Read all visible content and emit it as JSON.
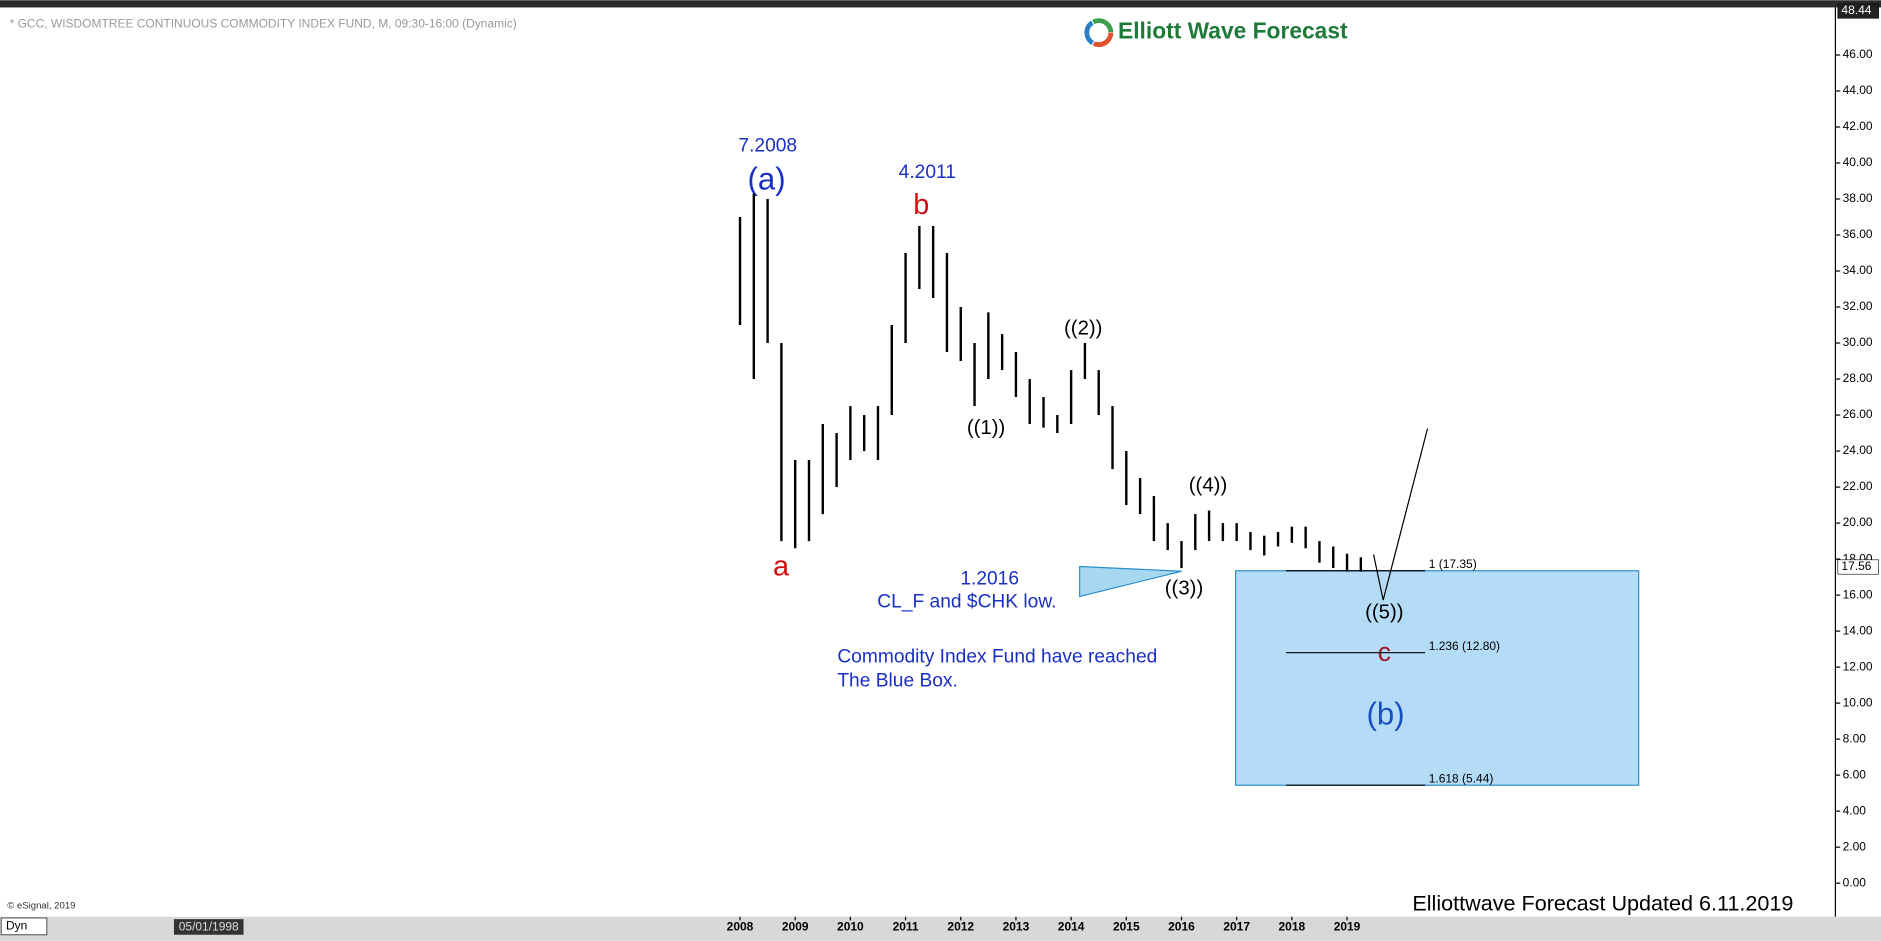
{
  "chart_data": {
    "type": "ohlc",
    "title": "* GCC, WISDOMTREE CONTINUOUS COMMODITY INDEX FUND, M, 09:30-16:00 (Dynamic)",
    "brand": "Elliott Wave Forecast",
    "copyright": "© eSignal, 2019",
    "mode": "Dyn",
    "start_date": "05/01/1998",
    "footer": "Elliottwave Forecast  Updated 6.11.2019",
    "color": "#000000",
    "x": [
      2008.0,
      2008.25,
      2008.5,
      2008.75,
      2009.0,
      2009.25,
      2009.5,
      2009.75,
      2010.0,
      2010.25,
      2010.5,
      2010.75,
      2011.0,
      2011.25,
      2011.5,
      2011.75,
      2012.0,
      2012.25,
      2012.5,
      2012.75,
      2013.0,
      2013.25,
      2013.5,
      2013.75,
      2014.0,
      2014.25,
      2014.5,
      2014.75,
      2015.0,
      2015.25,
      2015.5,
      2015.75,
      2016.0,
      2016.25,
      2016.5,
      2016.75,
      2017.0,
      2017.25,
      2017.5,
      2017.75,
      2018.0,
      2018.25,
      2018.5,
      2018.75,
      2019.0,
      2019.25
    ],
    "high": [
      37,
      38.3,
      38,
      30,
      23.5,
      23.5,
      25.5,
      25,
      26.5,
      26,
      26.5,
      31,
      35,
      36.5,
      36.5,
      35,
      32,
      30,
      31.7,
      30.5,
      29.5,
      28,
      27,
      26,
      28.5,
      30,
      28.5,
      26.5,
      24,
      22.5,
      21.5,
      20,
      19,
      20.5,
      20.7,
      20,
      20,
      19.5,
      19.3,
      19.5,
      19.8,
      19.8,
      19,
      18.7,
      18.3,
      18.1
    ],
    "low": [
      31,
      28,
      30,
      19,
      18.6,
      19,
      20.5,
      22,
      23.5,
      24,
      23.5,
      26,
      30,
      33,
      32.5,
      29.5,
      29,
      26.5,
      28,
      28.5,
      27,
      25.5,
      25.3,
      25,
      25.5,
      28,
      26,
      23,
      21,
      20.5,
      19,
      18.5,
      17.5,
      18.5,
      19,
      19,
      19,
      18.5,
      18.2,
      18.7,
      18.9,
      18.6,
      17.8,
      17.5,
      17.3,
      17.3
    ],
    "xlim": [
      1994.59,
      2027.85
    ],
    "xticks": [
      2008,
      2009,
      2010,
      2011,
      2012,
      2013,
      2014,
      2015,
      2016,
      2017,
      2018,
      2019
    ],
    "ylim": [
      -1.8,
      48.44
    ],
    "yticks": [
      {
        "value": 0,
        "label": "0.00"
      },
      {
        "value": 2,
        "label": "2.00"
      },
      {
        "value": 4,
        "label": "4.00"
      },
      {
        "value": 6,
        "label": "6.00"
      },
      {
        "value": 8,
        "label": "8.00"
      },
      {
        "value": 10,
        "label": "10.00"
      },
      {
        "value": 12,
        "label": "12.00"
      },
      {
        "value": 14,
        "label": "14.00"
      },
      {
        "value": 16,
        "label": "16.00"
      },
      {
        "value": 18,
        "label": "18.00"
      },
      {
        "value": 20,
        "label": "20.00"
      },
      {
        "value": 22,
        "label": "22.00"
      },
      {
        "value": 24,
        "label": "24.00"
      },
      {
        "value": 26,
        "label": "26.00"
      },
      {
        "value": 28,
        "label": "28.00"
      },
      {
        "value": 30,
        "label": "30.00"
      },
      {
        "value": 32,
        "label": "32.00"
      },
      {
        "value": 34,
        "label": "34.00"
      },
      {
        "value": 36,
        "label": "36.00"
      },
      {
        "value": 38,
        "label": "38.00"
      },
      {
        "value": 40,
        "label": "40.00"
      },
      {
        "value": 42,
        "label": "42.00"
      },
      {
        "value": 44,
        "label": "44.00"
      },
      {
        "value": 46,
        "label": "46.00"
      }
    ],
    "scale_top": {
      "value": 48.44,
      "label": "48.44"
    },
    "last_price": {
      "value": 17.56,
      "label": "17.56"
    },
    "fib_levels": [
      {
        "value": 17.35,
        "label": "1 (17.35)"
      },
      {
        "value": 12.8,
        "label": "1.236 (12.80)"
      },
      {
        "value": 5.44,
        "label": "1.618 (5.44)"
      }
    ],
    "annotations": {
      "date_a": "7.2008",
      "wave_big_a": "(a)",
      "wave_a": "a",
      "date_b": "4.2011",
      "wave_b": "b",
      "w1": "((1))",
      "w2": "((2))",
      "w3": "((3))",
      "w4": "((4))",
      "w5": "((5))",
      "date_2016": "1.2016",
      "note_low": "CL_F and $CHK  low.",
      "note_1": "Commodity Index Fund have reached",
      "note_2": "The Blue Box.",
      "wave_c": "c",
      "wave_big_b": "(b)"
    }
  }
}
